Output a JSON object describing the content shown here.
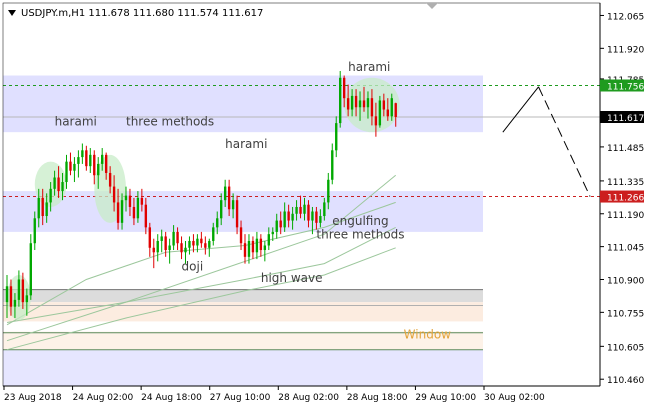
{
  "chart_data": {
    "type": "candlestick",
    "title": "USDJPY.m,H1  111.678 111.680 111.574 111.617",
    "ylim": [
      110.43,
      112.12
    ],
    "y_ticks": [
      "112.065",
      "111.920",
      "111.785",
      "111.485",
      "111.335",
      "111.190",
      "111.045",
      "110.900",
      "110.755",
      "110.605",
      "110.460"
    ],
    "x_ticks": [
      "23 Aug 2018",
      "24 Aug 02:00",
      "24 Aug 18:00",
      "27 Aug 10:00",
      "28 Aug 02:00",
      "28 Aug 18:00",
      "29 Aug 10:00",
      "30 Aug 02:00"
    ],
    "x_range": [
      0,
      120
    ],
    "price_tags": [
      {
        "label": "111.756",
        "value": 111.756,
        "color": "#1f9b1f"
      },
      {
        "label": "111.617",
        "value": 111.617,
        "color": "#000000"
      },
      {
        "label": "111.266",
        "value": 111.266,
        "color": "#cc1f1f"
      }
    ],
    "levels": [
      {
        "value": 111.756,
        "color": "#1f9b1f",
        "style": "dashed"
      },
      {
        "value": 111.266,
        "color": "#cc1f1f",
        "style": "dashed"
      },
      {
        "value": 111.617,
        "color": "#b8b8b8",
        "style": "solid"
      }
    ],
    "zones": [
      {
        "y1": 111.8,
        "y2": 111.55,
        "x2": 120,
        "color": "#e0e0ff"
      },
      {
        "y1": 111.29,
        "y2": 111.11,
        "x2": 120,
        "color": "#e0e0ff"
      },
      {
        "y1": 110.855,
        "y2": 110.8,
        "x2": 120,
        "color": "#dcdcdc"
      },
      {
        "y1": 110.8,
        "y2": 110.715,
        "x2": 120,
        "color": "#fcece0"
      },
      {
        "y1": 110.67,
        "y2": 110.59,
        "x2": 120,
        "color": "#fdf2e8"
      },
      {
        "y1": 110.59,
        "y2": 110.43,
        "x2": 120,
        "color": "#e6e6ff"
      }
    ],
    "zone_lines": [
      {
        "value": 110.855,
        "color": "#707070"
      },
      {
        "value": 110.785,
        "color": "#b0b0b0"
      },
      {
        "value": 110.665,
        "color": "#5c8a5c"
      },
      {
        "value": 110.59,
        "color": "#5c8a5c"
      }
    ],
    "projection": [
      [
        125,
        111.55
      ],
      [
        134,
        111.75
      ],
      [
        147,
        111.266
      ]
    ],
    "candles": [
      [
        0,
        110.8,
        110.92,
        110.73,
        110.87
      ],
      [
        1,
        110.87,
        110.9,
        110.74,
        110.78
      ],
      [
        2,
        110.78,
        110.84,
        110.73,
        110.81
      ],
      [
        3,
        110.81,
        110.94,
        110.78,
        110.9
      ],
      [
        4,
        110.9,
        110.93,
        110.77,
        110.8
      ],
      [
        5,
        110.8,
        110.86,
        110.74,
        110.83
      ],
      [
        6,
        110.83,
        111.1,
        110.81,
        111.06
      ],
      [
        7,
        111.06,
        111.2,
        111.03,
        111.17
      ],
      [
        8,
        111.17,
        111.3,
        111.13,
        111.26
      ],
      [
        9,
        111.26,
        111.3,
        111.14,
        111.18
      ],
      [
        10,
        111.18,
        111.28,
        111.15,
        111.24
      ],
      [
        11,
        111.24,
        111.33,
        111.2,
        111.3
      ],
      [
        12,
        111.3,
        111.38,
        111.27,
        111.35
      ],
      [
        13,
        111.35,
        111.4,
        111.26,
        111.29
      ],
      [
        14,
        111.29,
        111.37,
        111.25,
        111.33
      ],
      [
        15,
        111.33,
        111.45,
        111.3,
        111.42
      ],
      [
        16,
        111.42,
        111.46,
        111.36,
        111.38
      ],
      [
        17,
        111.38,
        111.44,
        111.33,
        111.41
      ],
      [
        18,
        111.41,
        111.47,
        111.35,
        111.44
      ],
      [
        19,
        111.44,
        111.5,
        111.41,
        111.47
      ],
      [
        20,
        111.47,
        111.49,
        111.38,
        111.4
      ],
      [
        21,
        111.4,
        111.48,
        111.37,
        111.45
      ],
      [
        22,
        111.45,
        111.47,
        111.32,
        111.36
      ],
      [
        23,
        111.36,
        111.44,
        111.3,
        111.41
      ],
      [
        24,
        111.41,
        111.48,
        111.38,
        111.45
      ],
      [
        25,
        111.45,
        111.46,
        111.34,
        111.37
      ],
      [
        26,
        111.37,
        111.4,
        111.28,
        111.31
      ],
      [
        27,
        111.31,
        111.36,
        111.2,
        111.24
      ],
      [
        28,
        111.24,
        111.3,
        111.12,
        111.15
      ],
      [
        29,
        111.15,
        111.28,
        111.12,
        111.25
      ],
      [
        30,
        111.25,
        111.31,
        111.2,
        111.27
      ],
      [
        31,
        111.27,
        111.3,
        111.18,
        111.22
      ],
      [
        32,
        111.22,
        111.26,
        111.14,
        111.17
      ],
      [
        33,
        111.17,
        111.29,
        111.15,
        111.26
      ],
      [
        34,
        111.26,
        111.3,
        111.2,
        111.23
      ],
      [
        35,
        111.23,
        111.26,
        111.1,
        111.13
      ],
      [
        36,
        111.13,
        111.15,
        111.0,
        111.04
      ],
      [
        37,
        111.04,
        111.08,
        110.95,
        111.02
      ],
      [
        38,
        111.02,
        111.1,
        110.98,
        111.07
      ],
      [
        39,
        111.07,
        111.12,
        111.02,
        111.09
      ],
      [
        40,
        111.09,
        111.11,
        111.0,
        111.03
      ],
      [
        41,
        111.03,
        111.08,
        110.97,
        111.05
      ],
      [
        42,
        111.05,
        111.14,
        111.03,
        111.11
      ],
      [
        43,
        111.11,
        111.13,
        111.03,
        111.06
      ],
      [
        44,
        111.06,
        111.09,
        110.99,
        111.02
      ],
      [
        45,
        111.02,
        111.07,
        110.97,
        111.04
      ],
      [
        46,
        111.04,
        111.09,
        111.01,
        111.07
      ],
      [
        47,
        111.07,
        111.1,
        111.02,
        111.05
      ],
      [
        48,
        111.05,
        111.1,
        111.02,
        111.08
      ],
      [
        49,
        111.08,
        111.11,
        111.04,
        111.06
      ],
      [
        50,
        111.06,
        111.09,
        111.01,
        111.04
      ],
      [
        51,
        111.04,
        111.08,
        111.0,
        111.07
      ],
      [
        52,
        111.07,
        111.15,
        111.05,
        111.13
      ],
      [
        53,
        111.13,
        111.2,
        111.1,
        111.17
      ],
      [
        54,
        111.17,
        111.28,
        111.14,
        111.25
      ],
      [
        55,
        111.25,
        111.34,
        111.22,
        111.31
      ],
      [
        56,
        111.31,
        111.34,
        111.18,
        111.21
      ],
      [
        57,
        111.21,
        111.28,
        111.17,
        111.25
      ],
      [
        58,
        111.25,
        111.27,
        111.1,
        111.13
      ],
      [
        59,
        111.13,
        111.16,
        111.03,
        111.06
      ],
      [
        60,
        111.06,
        111.1,
        110.97,
        111.0
      ],
      [
        61,
        111.0,
        111.1,
        110.97,
        111.07
      ],
      [
        62,
        111.07,
        111.09,
        110.99,
        111.02
      ],
      [
        63,
        111.02,
        111.11,
        110.99,
        111.08
      ],
      [
        64,
        111.08,
        111.1,
        111.0,
        111.03
      ],
      [
        65,
        111.03,
        111.07,
        110.98,
        111.05
      ],
      [
        66,
        111.05,
        111.13,
        111.03,
        111.1
      ],
      [
        67,
        111.1,
        111.13,
        111.07,
        111.11
      ],
      [
        68,
        111.11,
        111.19,
        111.08,
        111.16
      ],
      [
        69,
        111.16,
        111.2,
        111.1,
        111.13
      ],
      [
        70,
        111.13,
        111.24,
        111.11,
        111.2
      ],
      [
        71,
        111.2,
        111.23,
        111.13,
        111.16
      ],
      [
        72,
        111.16,
        111.22,
        111.12,
        111.19
      ],
      [
        73,
        111.19,
        111.25,
        111.16,
        111.22
      ],
      [
        74,
        111.22,
        111.27,
        111.17,
        111.19
      ],
      [
        75,
        111.19,
        111.26,
        111.16,
        111.23
      ],
      [
        76,
        111.23,
        111.25,
        111.13,
        111.16
      ],
      [
        77,
        111.16,
        111.22,
        111.1,
        111.2
      ],
      [
        78,
        111.2,
        111.22,
        111.12,
        111.15
      ],
      [
        79,
        111.15,
        111.21,
        111.13,
        111.18
      ],
      [
        80,
        111.18,
        111.26,
        111.16,
        111.24
      ],
      [
        81,
        111.24,
        111.37,
        111.21,
        111.34
      ],
      [
        82,
        111.34,
        111.5,
        111.32,
        111.47
      ],
      [
        83,
        111.47,
        111.62,
        111.44,
        111.59
      ],
      [
        84,
        111.59,
        111.82,
        111.57,
        111.79
      ],
      [
        85,
        111.79,
        111.8,
        111.66,
        111.7
      ],
      [
        86,
        111.7,
        111.76,
        111.62,
        111.65
      ],
      [
        87,
        111.65,
        111.74,
        111.62,
        111.71
      ],
      [
        88,
        111.71,
        111.74,
        111.62,
        111.66
      ],
      [
        89,
        111.66,
        111.73,
        111.6,
        111.69
      ],
      [
        90,
        111.69,
        111.75,
        111.64,
        111.66
      ],
      [
        91,
        111.66,
        111.73,
        111.61,
        111.7
      ],
      [
        92,
        111.7,
        111.74,
        111.58,
        111.62
      ],
      [
        93,
        111.62,
        111.68,
        111.53,
        111.58
      ],
      [
        94,
        111.58,
        111.71,
        111.57,
        111.69
      ],
      [
        95,
        111.69,
        111.72,
        111.62,
        111.65
      ],
      [
        96,
        111.65,
        111.7,
        111.6,
        111.62
      ],
      [
        97,
        111.62,
        111.72,
        111.6,
        111.7
      ],
      [
        98,
        111.678,
        111.68,
        111.574,
        111.617
      ]
    ],
    "moving_averages": [
      {
        "color": "#9cc79c",
        "points": [
          [
            0,
            110.71
          ],
          [
            30,
            110.8
          ],
          [
            60,
            110.98
          ],
          [
            80,
            111.1
          ],
          [
            98,
            111.36
          ]
        ]
      },
      {
        "color": "#9cc79c",
        "points": [
          [
            0,
            110.7
          ],
          [
            20,
            110.9
          ],
          [
            40,
            111.02
          ],
          [
            60,
            111.05
          ],
          [
            80,
            111.13
          ],
          [
            98,
            111.24
          ]
        ]
      },
      {
        "color": "#9cc79c",
        "points": [
          [
            0,
            110.63
          ],
          [
            30,
            110.8
          ],
          [
            60,
            110.9
          ],
          [
            80,
            110.97
          ],
          [
            98,
            111.13
          ]
        ]
      },
      {
        "color": "#9cc79c",
        "points": [
          [
            0,
            110.59
          ],
          [
            30,
            110.73
          ],
          [
            60,
            110.85
          ],
          [
            80,
            110.92
          ],
          [
            98,
            111.04
          ]
        ]
      }
    ],
    "highlights": [
      {
        "cx": 3,
        "cy": 110.82,
        "rx": 3,
        "ry": 0.1
      },
      {
        "cx": 11,
        "cy": 111.32,
        "rx": 4,
        "ry": 0.1
      },
      {
        "cx": 26,
        "cy": 111.3,
        "rx": 4,
        "ry": 0.15
      },
      {
        "cx": 92,
        "cy": 111.67,
        "rx": 7,
        "ry": 0.12
      }
    ],
    "annotations": [
      {
        "text": "harami",
        "x": 12,
        "y": 111.58,
        "color": "#404040"
      },
      {
        "text": "three methods",
        "x": 30,
        "y": 111.58,
        "color": "#404040"
      },
      {
        "text": "harami",
        "x": 55,
        "y": 111.48,
        "color": "#404040"
      },
      {
        "text": "harami",
        "x": 86,
        "y": 111.82,
        "color": "#404040"
      },
      {
        "text": "engulfing",
        "x": 82,
        "y": 111.14,
        "color": "#404040"
      },
      {
        "text": "three methods",
        "x": 78,
        "y": 111.08,
        "color": "#404040"
      },
      {
        "text": "doji",
        "x": 44,
        "y": 110.94,
        "color": "#404040"
      },
      {
        "text": "high wave",
        "x": 64,
        "y": 110.89,
        "color": "#404040"
      },
      {
        "text": "Window",
        "x": 100,
        "y": 110.64,
        "color": "#e3a33a"
      }
    ]
  }
}
